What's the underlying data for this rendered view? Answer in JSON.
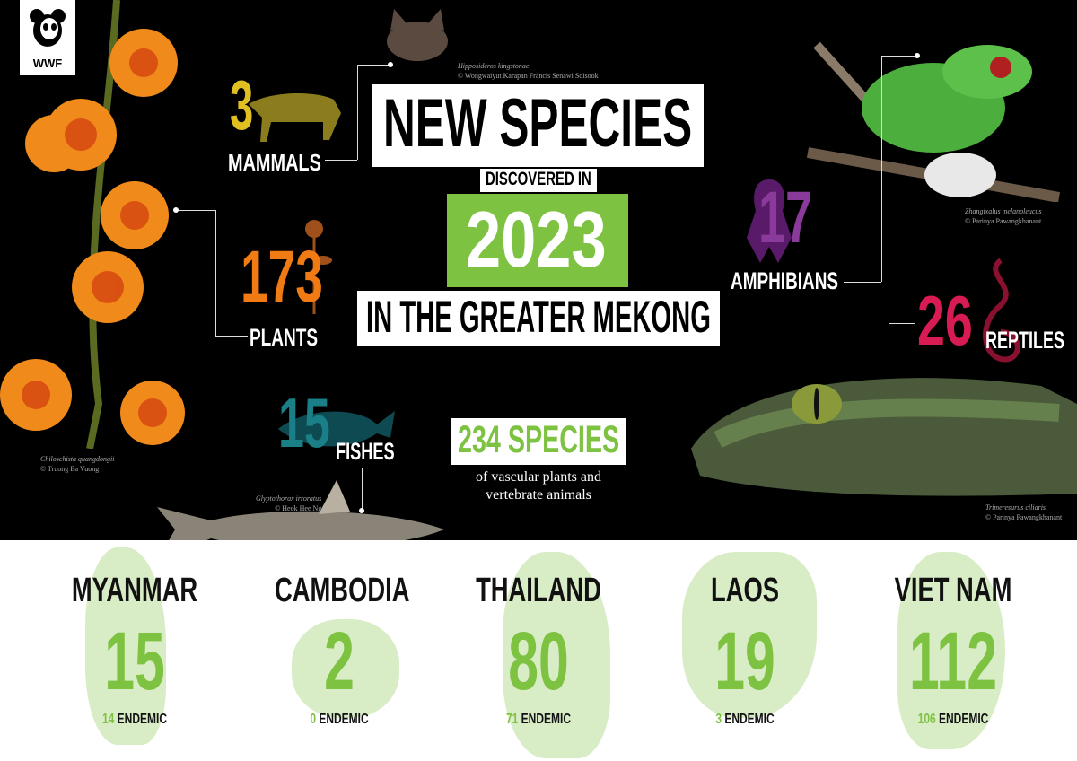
{
  "logo": {
    "text": "WWF"
  },
  "title": {
    "line1": "NEW SPECIES",
    "line2": "DISCOVERED IN",
    "year": "2023",
    "line3": "IN THE GREATER MEKONG"
  },
  "groups": {
    "mammals": {
      "count": "3",
      "label": "MAMMALS",
      "color": "#e0c020"
    },
    "plants": {
      "count": "173",
      "label": "PLANTS",
      "color": "#f07b14"
    },
    "fishes": {
      "count": "15",
      "label": "FISHES",
      "color": "#1a7f86"
    },
    "amphibians": {
      "count": "17",
      "label": "AMPHIBIANS",
      "color": "#8a3a9a"
    },
    "reptiles": {
      "count": "26",
      "label": "REPTILES",
      "color": "#d81b53"
    }
  },
  "total": {
    "count": "234 SPECIES",
    "desc_line1": "of vascular plants and",
    "desc_line2": "vertebrate animals",
    "color": "#7dc241"
  },
  "credits": {
    "bat": {
      "species": "Hipposideros kingstonae",
      "author": "© Wongwaiyut Karapan Francis Senawi Soisook"
    },
    "frog": {
      "species": "Zhangixalus melanoleucus",
      "author": "© Parinya Pawangkhanant"
    },
    "orchid": {
      "species": "Chiloschista quangdongii",
      "author": "© Truong Ba Vuong"
    },
    "fish": {
      "species": "Glyptothorax irroratus",
      "author": "© Heok Hee Ng"
    },
    "snake": {
      "species": "Trimeresurus ciliaris",
      "author": "© Parinya Pawangkhanant"
    }
  },
  "countries": [
    {
      "name": "MYANMAR",
      "count": "15",
      "endemic": "14",
      "endemic_label": "ENDEMIC"
    },
    {
      "name": "CAMBODIA",
      "count": "2",
      "endemic": "0",
      "endemic_label": "ENDEMIC"
    },
    {
      "name": "THAILAND",
      "count": "80",
      "endemic": "71",
      "endemic_label": "ENDEMIC"
    },
    {
      "name": "LAOS",
      "count": "19",
      "endemic": "3",
      "endemic_label": "ENDEMIC"
    },
    {
      "name": "VIET NAM",
      "count": "112",
      "endemic": "106",
      "endemic_label": "ENDEMIC"
    }
  ]
}
